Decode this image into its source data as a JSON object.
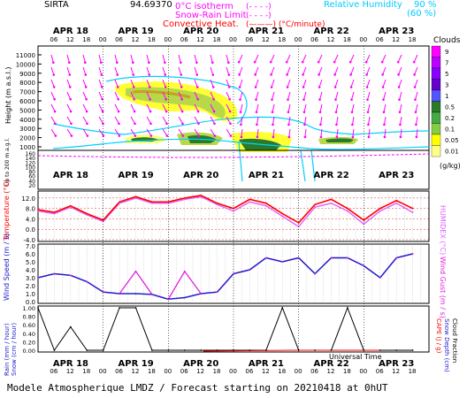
{
  "header": {
    "station": "SIRTA",
    "coords": "94.69370",
    "legend_left": [
      "0°C isotherm",
      "Snow-Rain Limit",
      "Convective Heat."
    ],
    "legend_left_suffix": [
      "(- - - -)",
      "(- - - -)",
      "(———) (°C/minute)"
    ],
    "legend_right": [
      "Relative Humidity",
      "90 %",
      "(60 %)"
    ],
    "colors": {
      "magenta": "#ff00ff",
      "red": "#ff0000",
      "cyan": "#00d0ff",
      "blue": "#0000cc"
    }
  },
  "days": [
    "APR 18",
    "APR 19",
    "APR 20",
    "APR 21",
    "APR 22",
    "APR 23"
  ],
  "hour_ticks": [
    "06",
    "12",
    "18",
    "00",
    "06",
    "12",
    "18",
    "00",
    "06",
    "12",
    "18",
    "00",
    "06",
    "12",
    "18",
    "00",
    "06",
    "12",
    "18",
    "00",
    "06",
    "12",
    "18"
  ],
  "clouds_panel": {
    "ylabel": "Height  (m a.s.l.)",
    "ylabel_low": "Up to 200 m a.g.l.",
    "y_ticks": [
      "11000",
      "10000",
      "9000",
      "8000",
      "7000",
      "6000",
      "5000",
      "4000",
      "3000",
      "2000",
      "1000"
    ],
    "y_ticks_low": [
      "160",
      "140",
      "120",
      "100",
      "80",
      "60",
      "40",
      "20"
    ],
    "legend_title": "Clouds",
    "legend_levels": [
      "9",
      "7",
      "5",
      "3",
      "1",
      "0.5",
      "0.2",
      "0.1",
      "0.05",
      "0.01"
    ],
    "legend_unit": "(g/kg)",
    "legend_colors": [
      "#ff00ff",
      "#bb00ff",
      "#8800ff",
      "#6600cc",
      "#5555ff",
      "#2a7a2a",
      "#44aa44",
      "#88cc44",
      "#ffff00",
      "#ffff88"
    ]
  },
  "temp_panel": {
    "ylabel": "Temperature (°C)",
    "ylabel_right": "HUMIDEX (°C)",
    "y_ticks": [
      "12.0",
      "8.0",
      "4.0",
      "0.0",
      "-4.0"
    ]
  },
  "wind_panel": {
    "ylabel": "Wind Speed (m / s)",
    "ylabel_right": "Wind Gust (m / s)",
    "y_ticks": [
      "7.0",
      "6.0",
      "5.0",
      "4.0",
      "3.0",
      "2.0",
      "1.0",
      "0.0"
    ]
  },
  "precip_panel": {
    "ylabel": "Rain (mm / hour)",
    "ylabel2": "Snow (cm / hour)",
    "ylabel_right": "CAPE (J / g)",
    "ylabel_right2": "Snow Depth (cm)",
    "ylabel_right3": "Cloud Fraction",
    "y_ticks": [
      "1.00",
      "0.80",
      "0.60",
      "0.40",
      "0.20",
      "0.00"
    ],
    "xlabel": "Universal Time"
  },
  "footer": "Modele Atmospherique LMDZ / Forecast starting on 20210418 at 0hUT",
  "chart_data": [
    {
      "type": "line",
      "title": "Temperature",
      "ylim": [
        -4,
        14
      ],
      "x_hours": [
        0,
        6,
        12,
        18,
        24,
        30,
        36,
        42,
        48,
        54,
        60,
        66,
        72,
        78,
        84,
        90,
        96,
        102,
        108,
        114,
        120,
        126,
        132,
        138
      ],
      "series": [
        {
          "name": "Temperature",
          "values": [
            7.5,
            6.5,
            9.0,
            6.0,
            3.5,
            10.5,
            12.5,
            10.5,
            10.5,
            12.0,
            13.0,
            10.0,
            8.0,
            11.5,
            10.0,
            6.0,
            2.5,
            9.5,
            11.5,
            8.0,
            3.5,
            8.0,
            11.0,
            8.0
          ]
        },
        {
          "name": "HUMIDEX",
          "values": [
            7.0,
            6.0,
            8.5,
            5.5,
            3.0,
            10.0,
            12.0,
            10.0,
            10.0,
            11.5,
            12.5,
            9.5,
            7.0,
            10.5,
            9.0,
            5.0,
            1.0,
            8.5,
            10.0,
            7.0,
            2.0,
            7.0,
            10.0,
            6.5
          ]
        }
      ]
    },
    {
      "type": "line",
      "title": "Wind Speed",
      "ylim": [
        0,
        7
      ],
      "x_hours": [
        0,
        6,
        12,
        18,
        24,
        30,
        36,
        42,
        48,
        54,
        60,
        66,
        72,
        78,
        84,
        90,
        96,
        102,
        108,
        114,
        120,
        126,
        132,
        138
      ],
      "series": [
        {
          "name": "Wind Speed",
          "values": [
            3.0,
            3.5,
            3.3,
            2.5,
            1.2,
            1.0,
            1.0,
            0.9,
            0.3,
            0.5,
            1.0,
            1.2,
            3.5,
            4.0,
            5.5,
            5.0,
            5.5,
            3.5,
            5.5,
            5.5,
            4.5,
            3.0,
            5.5,
            6.0
          ]
        },
        {
          "name": "Wind Gust",
          "values": [
            3.0,
            3.5,
            3.3,
            2.5,
            1.2,
            1.0,
            3.8,
            0.9,
            0.3,
            3.8,
            1.0,
            1.2,
            3.5,
            4.0,
            5.5,
            5.0,
            5.5,
            3.5,
            5.5,
            5.5,
            4.5,
            3.0,
            5.5,
            6.0
          ]
        }
      ]
    },
    {
      "type": "line",
      "title": "Precipitation",
      "ylim": [
        0,
        1
      ],
      "x_hours": [
        0,
        6,
        12,
        18,
        24,
        30,
        36,
        42,
        48,
        54,
        60,
        66,
        72,
        78,
        84,
        90,
        96,
        102,
        108,
        114,
        120,
        126,
        132,
        138
      ],
      "series": [
        {
          "name": "Cloud Fraction",
          "values": [
            1.0,
            0.0,
            0.55,
            0.0,
            0.0,
            1.0,
            1.0,
            0.0,
            0.0,
            0.0,
            0.0,
            0.0,
            0.0,
            0.0,
            0.0,
            1.0,
            0.0,
            0.0,
            0.0,
            1.0,
            0.0,
            0.0,
            0.0,
            0.0
          ]
        }
      ]
    }
  ]
}
